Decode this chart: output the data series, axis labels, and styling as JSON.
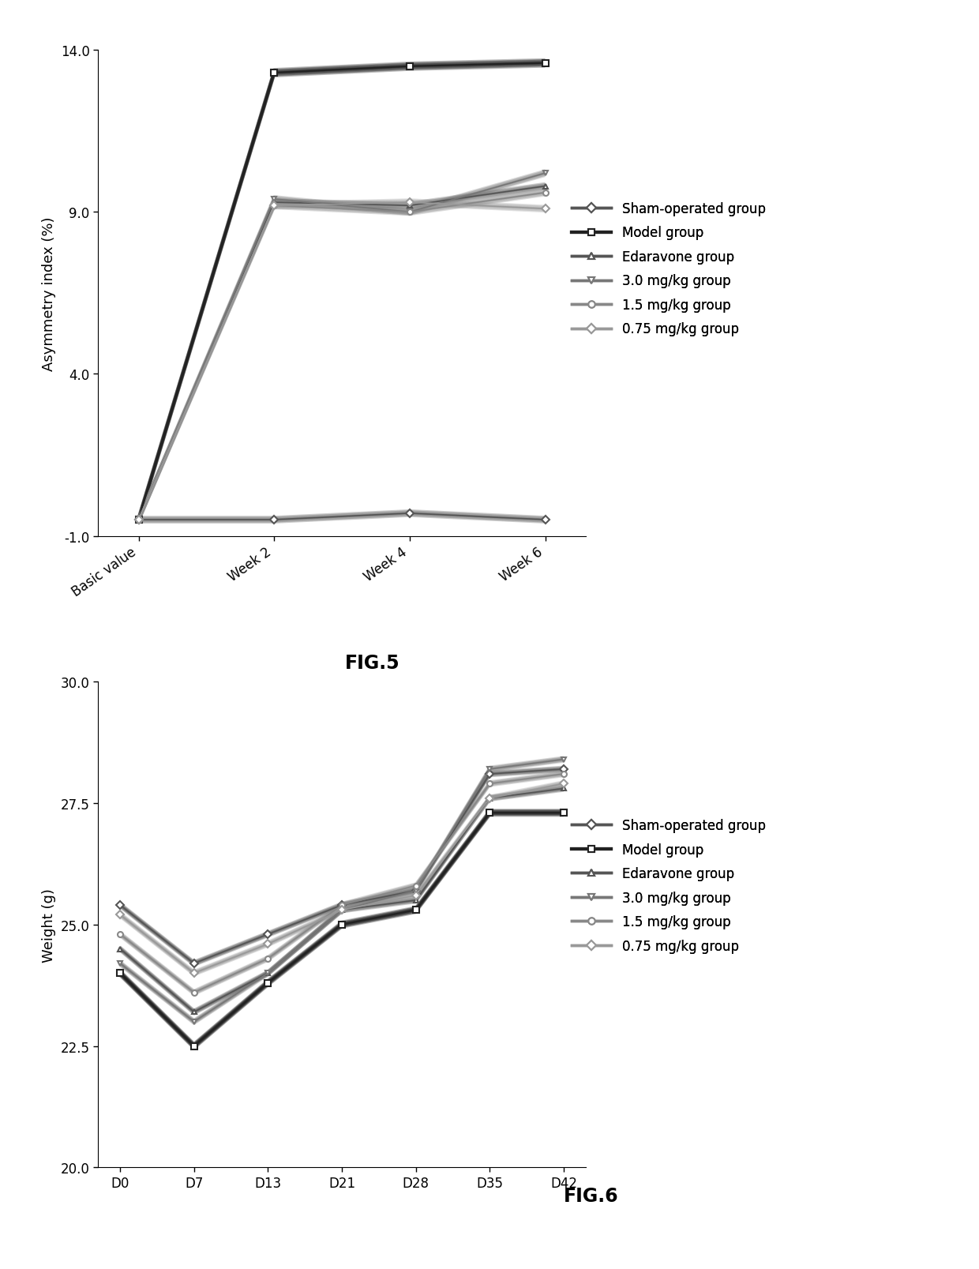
{
  "fig5": {
    "title": "FIG.5",
    "xlabel_ticks": [
      "Basic value",
      "Week 2",
      "Week 4",
      "Week 6"
    ],
    "ylabel": "Asymmetry index (%)",
    "ylim": [
      -1.0,
      14.0
    ],
    "yticks": [
      -1.0,
      4.0,
      9.0,
      14.0
    ],
    "series": [
      {
        "label": "Sham-operated group",
        "data": [
          -0.5,
          -0.5,
          -0.3,
          -0.5
        ],
        "color": "#555555",
        "lw": 2.5,
        "marker": "D",
        "ms": 5
      },
      {
        "label": "Model group",
        "data": [
          -0.5,
          13.3,
          13.5,
          13.6
        ],
        "color": "#222222",
        "lw": 3.0,
        "marker": "s",
        "ms": 6
      },
      {
        "label": "Edaravone group",
        "data": [
          -0.5,
          9.3,
          9.2,
          9.8
        ],
        "color": "#555555",
        "lw": 2.5,
        "marker": "^",
        "ms": 5
      },
      {
        "label": "3.0 mg/kg group",
        "data": [
          -0.5,
          9.4,
          9.0,
          10.2
        ],
        "color": "#777777",
        "lw": 2.5,
        "marker": "v",
        "ms": 5
      },
      {
        "label": "1.5 mg/kg group",
        "data": [
          -0.5,
          9.2,
          9.0,
          9.6
        ],
        "color": "#888888",
        "lw": 2.5,
        "marker": "o",
        "ms": 5
      },
      {
        "label": "0.75 mg/kg group",
        "data": [
          -0.5,
          9.2,
          9.3,
          9.1
        ],
        "color": "#999999",
        "lw": 2.5,
        "marker": "D",
        "ms": 5
      }
    ]
  },
  "fig6": {
    "title": "FIG.6",
    "xlabel_ticks": [
      "D0",
      "D7",
      "D13",
      "D21",
      "D28",
      "D35",
      "D42"
    ],
    "ylabel": "Weight (g)",
    "ylim": [
      20.0,
      30.0
    ],
    "yticks": [
      20.0,
      22.5,
      25.0,
      27.5,
      30.0
    ],
    "series": [
      {
        "label": "Sham-operated group",
        "data": [
          25.4,
          24.2,
          24.8,
          25.4,
          25.7,
          28.1,
          28.2
        ],
        "color": "#555555",
        "lw": 2.5,
        "marker": "D",
        "ms": 5
      },
      {
        "label": "Model group",
        "data": [
          24.0,
          22.5,
          23.8,
          25.0,
          25.3,
          27.3,
          27.3
        ],
        "color": "#222222",
        "lw": 3.0,
        "marker": "s",
        "ms": 6
      },
      {
        "label": "Edaravone group",
        "data": [
          24.5,
          23.2,
          24.0,
          25.3,
          25.5,
          27.6,
          27.8
        ],
        "color": "#555555",
        "lw": 2.5,
        "marker": "^",
        "ms": 5
      },
      {
        "label": "3.0 mg/kg group",
        "data": [
          24.2,
          23.0,
          24.0,
          25.3,
          25.7,
          28.2,
          28.4
        ],
        "color": "#777777",
        "lw": 2.5,
        "marker": "v",
        "ms": 5
      },
      {
        "label": "1.5 mg/kg group",
        "data": [
          24.8,
          23.6,
          24.3,
          25.4,
          25.8,
          27.9,
          28.1
        ],
        "color": "#888888",
        "lw": 2.5,
        "marker": "o",
        "ms": 5
      },
      {
        "label": "0.75 mg/kg group",
        "data": [
          25.2,
          24.0,
          24.6,
          25.3,
          25.6,
          27.6,
          27.9
        ],
        "color": "#999999",
        "lw": 2.5,
        "marker": "D",
        "ms": 5
      }
    ]
  },
  "background_color": "#ffffff",
  "legend_fontsize": 12,
  "axis_label_fontsize": 13,
  "tick_fontsize": 12,
  "fig_title_fontsize": 17
}
